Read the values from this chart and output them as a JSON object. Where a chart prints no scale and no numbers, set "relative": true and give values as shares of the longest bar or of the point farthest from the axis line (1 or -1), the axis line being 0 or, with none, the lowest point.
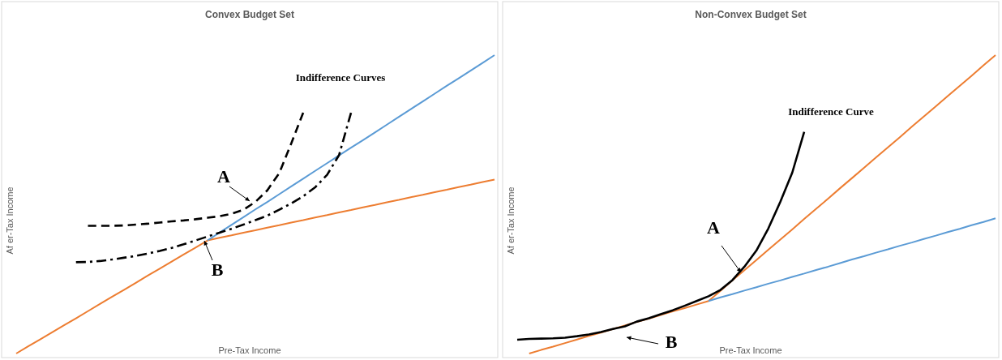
{
  "chart_data": [
    {
      "type": "line",
      "title": "Convex Budget Set",
      "xlabel": "Pre-Tax Income",
      "ylabel": "Af er-Tax Income",
      "relative": true,
      "categories": [
        null,
        null,
        null,
        null,
        null,
        null,
        null,
        null,
        null,
        null,
        null,
        null,
        null,
        null,
        null,
        null,
        null,
        null,
        null,
        null,
        null,
        null,
        null,
        null,
        null,
        null,
        null,
        null,
        null,
        null,
        null,
        null,
        null,
        null,
        null,
        null,
        null,
        null,
        null,
        null,
        null
      ],
      "series": [
        {
          "color": "#ed7d31",
          "line_style": "solid",
          "values": [
            0,
            0.024,
            0.047,
            0.071,
            0.095,
            0.118,
            0.142,
            0.166,
            0.19,
            0.213,
            0.237,
            0.261,
            0.284,
            0.308,
            0.332,
            0.355,
            0.379,
            0.388,
            0.396,
            0.405,
            0.413,
            0.422,
            0.43,
            0.439,
            0.447,
            0.456,
            0.464,
            0.473,
            0.481,
            0.49,
            0.498,
            0.507,
            0.515,
            0.524,
            0.532,
            0.541,
            0.549,
            0.558,
            0.566,
            0.575,
            0.583
          ]
        },
        {
          "color": "#5b9bd5",
          "line_style": "solid",
          "values": [
            null,
            null,
            null,
            null,
            null,
            null,
            null,
            null,
            null,
            null,
            null,
            null,
            null,
            null,
            null,
            null,
            0.379,
            0.405,
            0.431,
            0.457,
            0.483,
            0.508,
            0.534,
            0.56,
            0.586,
            0.612,
            0.638,
            0.664,
            0.69,
            0.715,
            0.741,
            0.767,
            0.793,
            0.819,
            0.845,
            0.871,
            0.897,
            0.922,
            0.948,
            0.974,
            1
          ]
        },
        {
          "color": "#000000",
          "line_style": "dashed",
          "values": [
            null,
            null,
            null,
            null,
            null,
            null,
            0.428,
            0.428,
            0.428,
            0.429,
            0.432,
            0.435,
            0.439,
            0.443,
            0.446,
            0.45,
            0.455,
            0.46,
            0.468,
            0.482,
            0.508,
            0.547,
            0.605,
            0.704,
            0.807,
            null,
            null,
            null,
            null,
            null,
            null,
            null,
            null,
            null,
            null,
            null,
            null,
            null,
            null,
            null,
            null
          ]
        },
        {
          "color": "#000000",
          "line_style": "dashdot",
          "values": [
            null,
            null,
            null,
            null,
            null,
            0.306,
            0.307,
            0.31,
            0.315,
            0.321,
            0.327,
            0.335,
            0.344,
            0.354,
            0.366,
            0.379,
            0.392,
            0.405,
            0.418,
            0.432,
            0.447,
            0.462,
            0.482,
            0.503,
            0.527,
            0.557,
            0.599,
            0.665,
            0.807,
            null,
            null,
            null,
            null,
            null,
            null,
            null,
            null,
            null,
            null,
            null,
            null
          ]
        }
      ],
      "annotations": [
        "Indifference Curves",
        "A",
        "B"
      ]
    },
    {
      "type": "line",
      "title": "Non-Convex Budget Set",
      "xlabel": "Pre-Tax Income",
      "ylabel": "Af er-Tax Income",
      "relative": true,
      "categories": [
        null,
        null,
        null,
        null,
        null,
        null,
        null,
        null,
        null,
        null,
        null,
        null,
        null,
        null,
        null,
        null,
        null,
        null,
        null,
        null,
        null,
        null,
        null,
        null,
        null,
        null,
        null,
        null,
        null,
        null,
        null,
        null,
        null,
        null,
        null,
        null,
        null,
        null,
        null,
        null,
        null
      ],
      "series": [
        {
          "color": "#ed7d31",
          "line_style": "solid",
          "values": [
            null,
            0,
            0.012,
            0.023,
            0.035,
            0.047,
            0.059,
            0.07,
            0.082,
            0.094,
            0.106,
            0.117,
            0.129,
            0.141,
            0.152,
            0.164,
            0.176,
            0.21,
            0.245,
            0.279,
            0.313,
            0.348,
            0.382,
            0.416,
            0.451,
            0.485,
            0.519,
            0.554,
            0.588,
            0.622,
            0.657,
            0.691,
            0.725,
            0.76,
            0.794,
            0.828,
            0.863,
            0.897,
            0.931,
            0.966,
            1
          ]
        },
        {
          "color": "#5b9bd5",
          "line_style": "solid",
          "values": [
            null,
            null,
            null,
            null,
            null,
            null,
            null,
            null,
            null,
            null,
            null,
            null,
            null,
            null,
            null,
            null,
            0.176,
            0.188,
            0.199,
            0.211,
            0.222,
            0.234,
            0.245,
            0.257,
            0.268,
            0.28,
            0.291,
            0.303,
            0.315,
            0.326,
            0.338,
            0.349,
            0.361,
            0.372,
            0.384,
            0.395,
            0.407,
            0.418,
            0.43,
            0.441,
            0.453
          ]
        },
        {
          "color": "#000000",
          "line_style": "solid",
          "values": [
            0.046,
            0.049,
            0.05,
            0.051,
            0.053,
            0.058,
            0.064,
            0.072,
            0.082,
            0.091,
            0.107,
            0.118,
            0.132,
            0.145,
            0.16,
            0.176,
            0.192,
            0.213,
            0.246,
            0.291,
            0.345,
            0.419,
            0.508,
            0.606,
            0.743,
            null,
            null,
            null,
            null,
            null,
            null,
            null,
            null,
            null,
            null,
            null,
            null,
            null,
            null,
            null,
            null
          ]
        }
      ],
      "annotations": [
        "Indifference Curve",
        "A",
        "B"
      ]
    }
  ]
}
